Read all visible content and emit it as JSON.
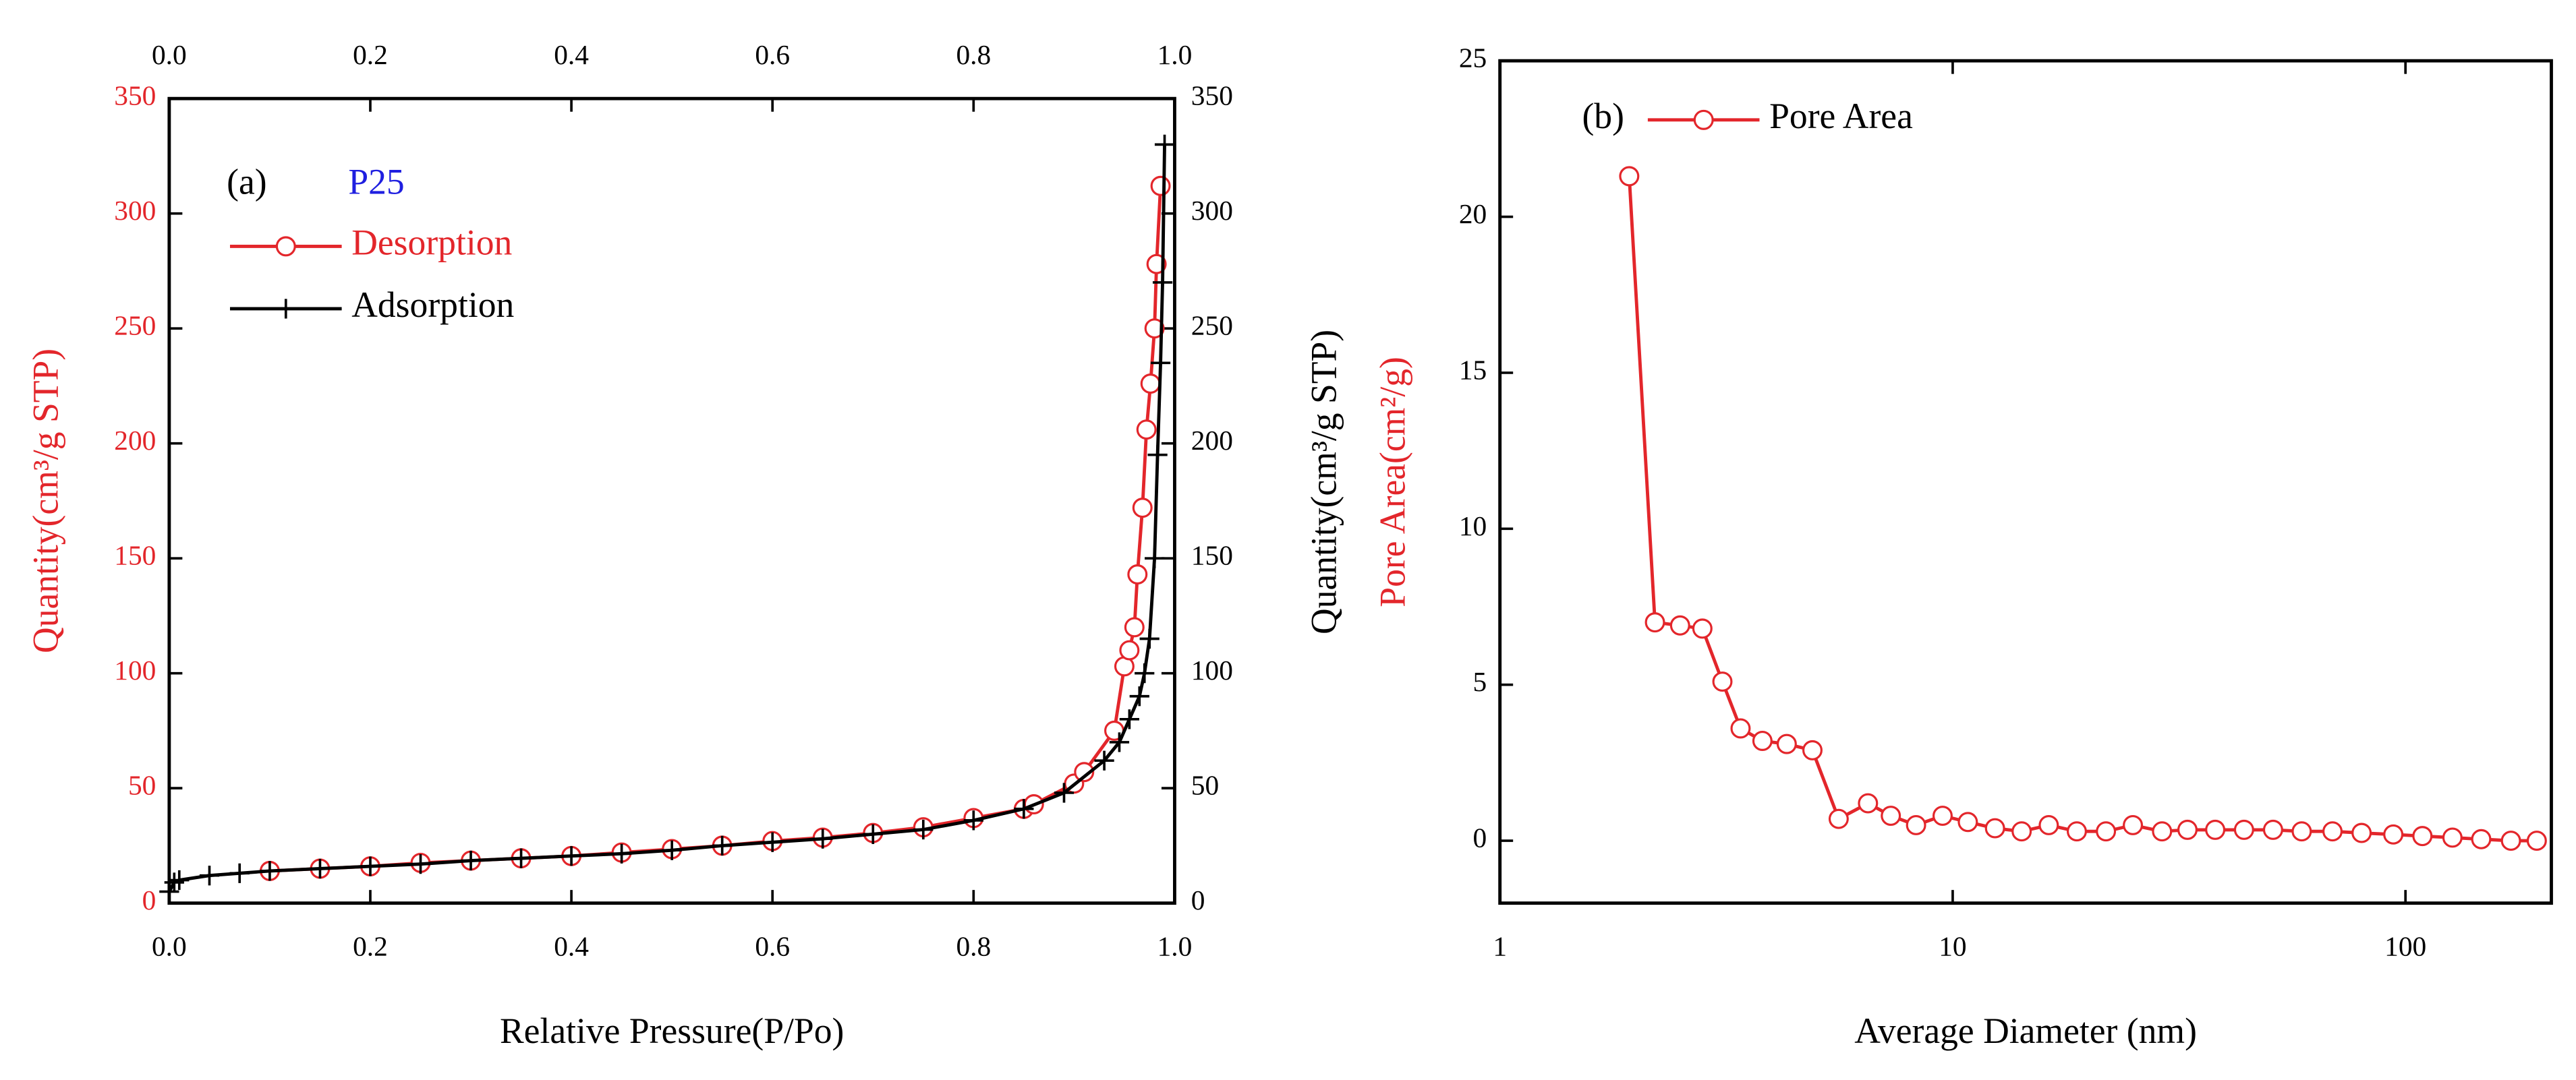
{
  "chart_data": [
    {
      "type": "line",
      "xlabel": "Relative Pressure(P/Po)",
      "ylabel": "Quantity(cm³/g STP)",
      "ylabel_color": "#e3262b",
      "ytick_color": "#e3262b",
      "xlim": [
        0,
        1
      ],
      "xticks": [
        {
          "value": 0,
          "label": "0.0"
        },
        0.2,
        0.4,
        0.6,
        0.8,
        {
          "value": 1,
          "label": "1.0"
        }
      ],
      "xticks_top": true,
      "ylim": [
        0,
        350
      ],
      "yticks": [
        0,
        50,
        100,
        150,
        200,
        250,
        300,
        350
      ],
      "y2lim": [
        0,
        350
      ],
      "y2ticks": [
        0,
        50,
        100,
        150,
        200,
        250,
        300,
        350
      ],
      "legend": "upper left",
      "annotations": [
        {
          "text": "(a)",
          "color": "#000000"
        },
        {
          "text": "P25",
          "color": "#1f1fe0"
        }
      ],
      "series": [
        {
          "name": "Desorption",
          "color": "#e3262b",
          "label_color": "#e3262b",
          "marker": "circle",
          "x": [
            0.1,
            0.15,
            0.2,
            0.25,
            0.3,
            0.35,
            0.4,
            0.45,
            0.5,
            0.55,
            0.6,
            0.65,
            0.7,
            0.75,
            0.8,
            0.85,
            0.86,
            0.9,
            0.91,
            0.94,
            0.95,
            0.955,
            0.96,
            0.963,
            0.968,
            0.972,
            0.976,
            0.98,
            0.982,
            0.986
          ],
          "values": [
            14,
            15,
            16,
            17.5,
            18.5,
            19.5,
            20.5,
            22,
            23.5,
            25,
            27,
            28.5,
            30.5,
            33,
            37,
            41,
            43,
            52,
            57,
            75,
            103,
            110,
            120,
            143,
            172,
            206,
            226,
            250,
            278,
            312
          ]
        },
        {
          "name": "Adsorption",
          "color": "#000000",
          "label_color": "#000000",
          "marker": "plus",
          "x": [
            0,
            0.005,
            0.01,
            0.04,
            0.07,
            0.1,
            0.15,
            0.2,
            0.25,
            0.3,
            0.35,
            0.4,
            0.45,
            0.5,
            0.55,
            0.6,
            0.65,
            0.7,
            0.75,
            0.8,
            0.85,
            0.89,
            0.93,
            0.945,
            0.955,
            0.965,
            0.97,
            0.975,
            0.98,
            0.983,
            0.986,
            0.988,
            0.99
          ],
          "values": [
            5,
            9,
            10,
            12,
            13,
            14,
            15,
            16,
            17,
            18.5,
            19.5,
            20.5,
            21.5,
            23,
            25,
            26.5,
            28,
            30,
            32,
            36,
            41,
            48,
            62,
            70,
            80,
            90,
            100,
            115,
            150,
            195,
            235,
            270,
            330
          ]
        }
      ]
    },
    {
      "type": "line",
      "xlabel": "Average Diameter (nm)",
      "ylabel": [
        "Quantity(cm³/g STP)",
        "Pore Area(cm²/g)"
      ],
      "ylabel_color": [
        "#000000",
        "#e3262b"
      ],
      "ytick_color": "#000000",
      "xscale": "log",
      "xlim": [
        1,
        210
      ],
      "xticks": [
        1,
        10,
        100
      ],
      "ylim": [
        -2,
        25
      ],
      "yticks": [
        0,
        5,
        10,
        15,
        20,
        25
      ],
      "legend": "upper left",
      "annotations": [
        {
          "text": "(b)",
          "color": "#000000"
        }
      ],
      "series": [
        {
          "name": "Pore Area",
          "color": "#e3262b",
          "label_color": "#000000",
          "marker": "circle",
          "x": [
            1.93,
            2.2,
            2.5,
            2.8,
            3.1,
            3.4,
            3.8,
            4.3,
            4.9,
            5.6,
            6.5,
            7.3,
            8.3,
            9.5,
            10.8,
            12.4,
            14.2,
            16.3,
            18.8,
            21.8,
            25,
            29,
            33,
            38,
            44,
            51,
            59,
            69,
            80,
            94,
            109,
            127,
            147,
            171,
            195
          ],
          "values": [
            21.3,
            7,
            6.9,
            6.8,
            5.1,
            3.6,
            3.2,
            3.1,
            2.9,
            0.7,
            1.2,
            0.8,
            0.5,
            0.8,
            0.6,
            0.4,
            0.3,
            0.5,
            0.3,
            0.3,
            0.5,
            0.3,
            0.35,
            0.35,
            0.35,
            0.35,
            0.3,
            0.3,
            0.25,
            0.2,
            0.15,
            0.1,
            0.05,
            0,
            0
          ]
        }
      ]
    }
  ]
}
